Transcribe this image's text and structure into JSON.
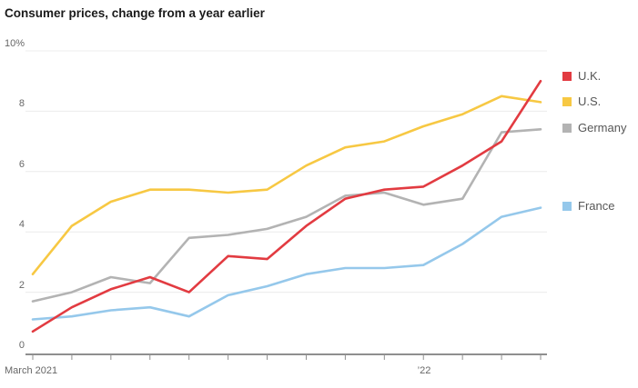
{
  "title": "Consumer prices, change from a year earlier",
  "colors": {
    "uk": "#e23b41",
    "us": "#f7c843",
    "germany": "#b3b3b3",
    "france": "#95c8eb",
    "gridline": "#ececec",
    "axis": "#8f8f8f",
    "title_text": "#1b1b1b",
    "axis_text": "#676767",
    "legend_text": "#565656"
  },
  "x_axis": {
    "start_label": "March 2021",
    "year_tick_label": "’22"
  },
  "chart_data": {
    "type": "line",
    "title": "Consumer prices, change from a year earlier",
    "x_unit": "month",
    "x": [
      "Mar 2021",
      "Apr 2021",
      "May 2021",
      "Jun 2021",
      "Jul 2021",
      "Aug 2021",
      "Sep 2021",
      "Oct 2021",
      "Nov 2021",
      "Dec 2021",
      "Jan 2022",
      "Feb 2022",
      "Mar 2022",
      "Apr 2022"
    ],
    "x_axis_visible_labels": [
      "March 2021",
      "’22"
    ],
    "ylim": [
      0,
      10
    ],
    "y_ticks": [
      0,
      2,
      4,
      6,
      8,
      10
    ],
    "y_tick_labels": [
      "0",
      "2",
      "4",
      "6",
      "8",
      "10%"
    ],
    "grid": "horizontal",
    "legend_position": "right of line ends",
    "series": [
      {
        "name": "U.K.",
        "slug": "uk",
        "color": "#e23b41",
        "values": [
          0.7,
          1.5,
          2.1,
          2.5,
          2.0,
          3.2,
          3.1,
          4.2,
          5.1,
          5.4,
          5.5,
          6.2,
          7.0,
          9.0
        ]
      },
      {
        "name": "U.S.",
        "slug": "us",
        "color": "#f7c843",
        "values": [
          2.6,
          4.2,
          5.0,
          5.4,
          5.4,
          5.3,
          5.4,
          6.2,
          6.8,
          7.0,
          7.5,
          7.9,
          8.5,
          8.3
        ]
      },
      {
        "name": "Germany",
        "slug": "germany",
        "color": "#b3b3b3",
        "values": [
          1.7,
          2.0,
          2.5,
          2.3,
          3.8,
          3.9,
          4.1,
          4.5,
          5.2,
          5.3,
          4.9,
          5.1,
          7.3,
          7.4
        ]
      },
      {
        "name": "France",
        "slug": "france",
        "color": "#95c8eb",
        "values": [
          1.1,
          1.2,
          1.4,
          1.5,
          1.2,
          1.9,
          2.2,
          2.6,
          2.8,
          2.8,
          2.9,
          3.6,
          4.5,
          4.8
        ]
      }
    ]
  }
}
